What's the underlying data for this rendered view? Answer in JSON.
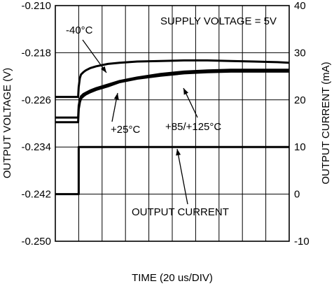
{
  "chart_data": {
    "type": "line",
    "title": "",
    "xlabel": "TIME (20 us/DIV)",
    "ylabel": "OUTPUT VOLTAGE (V)",
    "y2label": "OUTPUT CURRENT (mA)",
    "grid": true,
    "x_divisions": 10,
    "xlim": [
      0,
      200
    ],
    "ylim": [
      -0.25,
      -0.21
    ],
    "y2lim": [
      -10,
      40
    ],
    "yticks": [
      "-0.210",
      "-0.218",
      "-0.226",
      "-0.234",
      "-0.242",
      "-0.250"
    ],
    "y2ticks": [
      "40",
      "30",
      "20",
      "10",
      "0",
      "-10"
    ],
    "series": [
      {
        "name": "-40°C",
        "axis": "left",
        "x": [
          0,
          19.5,
          20,
          21,
          22,
          24,
          26,
          30,
          35,
          45,
          55,
          70,
          90,
          110,
          130,
          150,
          170,
          190,
          200
        ],
        "y": [
          -0.2255,
          -0.2255,
          -0.2238,
          -0.2223,
          -0.2217,
          -0.2213,
          -0.221,
          -0.2206,
          -0.2203,
          -0.2199,
          -0.2197,
          -0.2195,
          -0.2194,
          -0.2193,
          -0.2193,
          -0.2194,
          -0.2195,
          -0.2196,
          -0.2197
        ]
      },
      {
        "name": "+25°C",
        "axis": "left",
        "x": [
          0,
          19.5,
          20,
          21,
          22,
          24,
          26,
          30,
          35,
          45,
          55,
          70,
          90,
          110,
          130,
          150,
          170,
          190,
          200
        ],
        "y": [
          -0.229,
          -0.229,
          -0.227,
          -0.2259,
          -0.2254,
          -0.225,
          -0.2248,
          -0.2244,
          -0.224,
          -0.2234,
          -0.2228,
          -0.2222,
          -0.2216,
          -0.2212,
          -0.221,
          -0.2209,
          -0.2209,
          -0.2209,
          -0.2209
        ]
      },
      {
        "name": "+85/+125°C",
        "axis": "left",
        "x": [
          0,
          19.5,
          20,
          21,
          22,
          24,
          26,
          30,
          35,
          45,
          55,
          70,
          90,
          110,
          130,
          150,
          170,
          190,
          200
        ],
        "y": [
          -0.2298,
          -0.2298,
          -0.2276,
          -0.2264,
          -0.2258,
          -0.2254,
          -0.2251,
          -0.2247,
          -0.2243,
          -0.2237,
          -0.223,
          -0.2224,
          -0.2219,
          -0.2215,
          -0.2213,
          -0.2212,
          -0.2212,
          -0.2212,
          -0.2212
        ]
      },
      {
        "name": "OUTPUT CURRENT",
        "axis": "right",
        "x": [
          0,
          20,
          20,
          200
        ],
        "y": [
          0,
          0,
          10,
          10
        ]
      }
    ],
    "annotations": [
      {
        "text": "-40°C",
        "series": "-40°C"
      },
      {
        "text": "+25°C",
        "series": "+25°C"
      },
      {
        "text": "+85/+125°C",
        "series": "+85/+125°C"
      },
      {
        "text": "OUTPUT CURRENT",
        "series": "OUTPUT CURRENT"
      },
      {
        "text": "SUPPLY VOLTAGE = 5V",
        "series": ""
      }
    ],
    "colors": {
      "line": "#000000",
      "grid": "#000000",
      "background": "#ffffff"
    }
  }
}
